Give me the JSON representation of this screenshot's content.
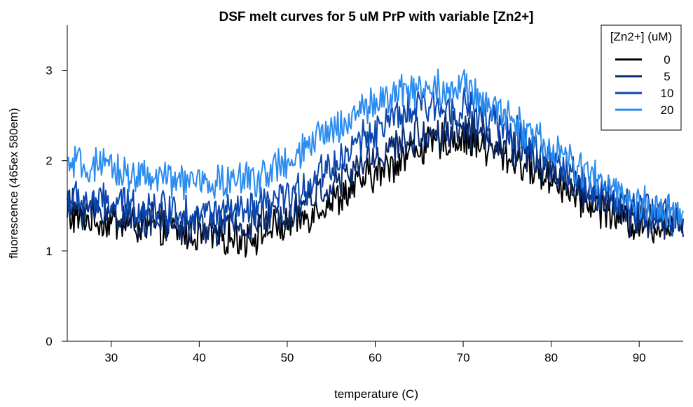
{
  "chart_data": {
    "type": "line",
    "title": "DSF melt curves for 5 uM PrP with variable [Zn2+]",
    "xlabel": "temperature (C)",
    "ylabel": "fluorescence (465ex 580em)",
    "xlim": [
      25,
      95
    ],
    "ylim": [
      0,
      3.5
    ],
    "xticks": [
      30,
      40,
      50,
      60,
      70,
      80,
      90
    ],
    "yticks": [
      0,
      1,
      2,
      3
    ],
    "grid": false,
    "legend": {
      "title": "[Zn2+] (uM)",
      "position": "top-right"
    },
    "x": [
      25,
      30,
      35,
      40,
      45,
      50,
      55,
      60,
      65,
      70,
      75,
      80,
      85,
      90,
      95
    ],
    "series": [
      {
        "name": "0",
        "color": "#000000",
        "values": [
          1.38,
          1.32,
          1.25,
          1.18,
          1.15,
          1.28,
          1.55,
          1.85,
          2.15,
          2.25,
          2.05,
          1.8,
          1.5,
          1.3,
          1.3
        ]
      },
      {
        "name": "5",
        "color": "#0a2a6e",
        "values": [
          1.48,
          1.42,
          1.32,
          1.27,
          1.27,
          1.42,
          1.72,
          2.05,
          2.28,
          2.38,
          2.18,
          1.88,
          1.6,
          1.35,
          1.3
        ]
      },
      {
        "name": "10",
        "color": "#0a47b0",
        "values": [
          1.58,
          1.52,
          1.48,
          1.42,
          1.42,
          1.58,
          1.95,
          2.35,
          2.58,
          2.6,
          2.35,
          2.0,
          1.7,
          1.45,
          1.35
        ]
      },
      {
        "name": "20",
        "color": "#2b8cef",
        "values": [
          1.95,
          1.9,
          1.8,
          1.75,
          1.78,
          1.95,
          2.35,
          2.65,
          2.82,
          2.8,
          2.5,
          2.12,
          1.8,
          1.5,
          1.4
        ]
      }
    ]
  }
}
